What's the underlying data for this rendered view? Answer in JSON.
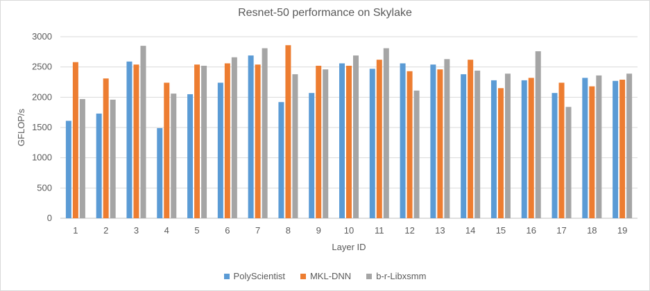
{
  "chart_data": {
    "type": "bar",
    "title": "Resnet-50 performance on Skylake",
    "xlabel": "Layer ID",
    "ylabel": "GFLOP/s",
    "ylim": [
      0,
      3000
    ],
    "yticks": [
      0,
      500,
      1000,
      1500,
      2000,
      2500,
      3000
    ],
    "grid": true,
    "legend_position": "bottom",
    "categories": [
      "1",
      "2",
      "3",
      "4",
      "5",
      "6",
      "7",
      "8",
      "9",
      "10",
      "11",
      "12",
      "13",
      "14",
      "15",
      "16",
      "17",
      "18",
      "19"
    ],
    "series": [
      {
        "name": "PolyScientist",
        "color": "#5b9bd5",
        "values": [
          1610,
          1730,
          2590,
          1490,
          2050,
          2240,
          2690,
          1920,
          2070,
          2560,
          2470,
          2560,
          2540,
          2380,
          2280,
          2280,
          2070,
          2320,
          2270
        ]
      },
      {
        "name": "MKL-DNN",
        "color": "#ed7d31",
        "values": [
          2580,
          2310,
          2540,
          2240,
          2540,
          2560,
          2540,
          2860,
          2520,
          2520,
          2620,
          2430,
          2460,
          2620,
          2150,
          2320,
          2240,
          2180,
          2290
        ]
      },
      {
        "name": "b-r-Libxsmm",
        "color": "#a5a5a5",
        "values": [
          1970,
          1960,
          2850,
          2060,
          2520,
          2660,
          2810,
          2380,
          2460,
          2690,
          2810,
          2110,
          2630,
          2440,
          2390,
          2760,
          1840,
          2360,
          2390
        ]
      }
    ]
  }
}
